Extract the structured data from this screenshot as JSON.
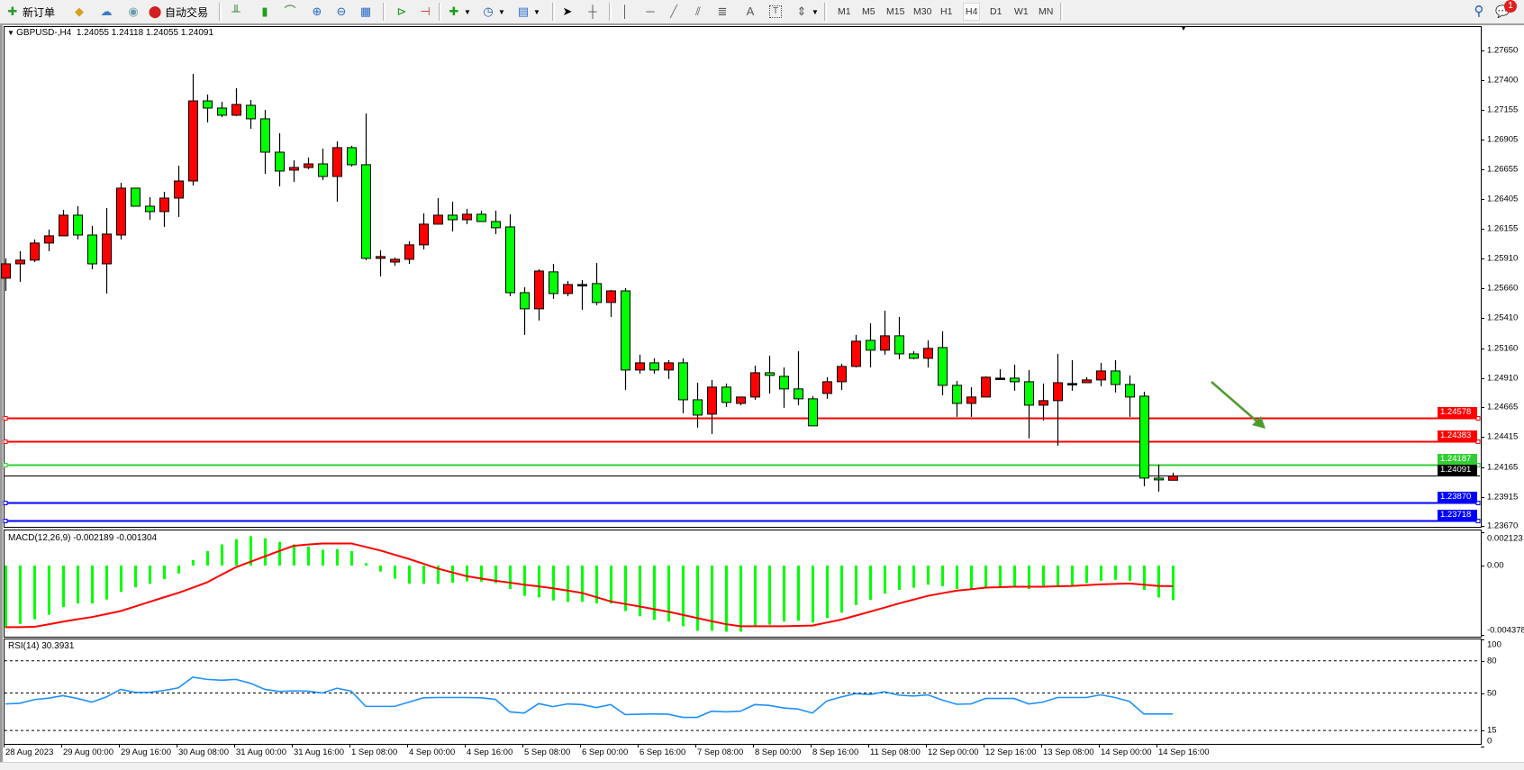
{
  "toolbar": {
    "new_order": {
      "label": "新订单",
      "icon": "new-order-icon"
    },
    "auto_trading": {
      "label": "自动交易",
      "icon": "auto-trading-icon"
    },
    "timeframes": [
      "M1",
      "M5",
      "M15",
      "M30",
      "H1",
      "H4",
      "D1",
      "W1",
      "MN"
    ],
    "active_timeframe": "H4",
    "notification_count": "1"
  },
  "chart": {
    "header": "GBPUSD-,H4  1.24055 1.24118 1.24055 1.24091",
    "symbol": "GBPUSD-",
    "timeframe": "H4",
    "bid": "1.24091",
    "colors": {
      "up": "#ff0000",
      "down": "#00ff00",
      "outline": "#000000",
      "arrow": "#4e9a2e"
    },
    "price_axis": [
      "1.27650",
      "1.27400",
      "1.27155",
      "1.26905",
      "1.26655",
      "1.26405",
      "1.26155",
      "1.25910",
      "1.25660",
      "1.25410",
      "1.25160",
      "1.24910",
      "1.24665",
      "1.24415",
      "1.24165",
      "1.23915",
      "1.23670"
    ],
    "hlines": [
      {
        "price": "1.24578",
        "color": "#ff0000"
      },
      {
        "price": "1.24383",
        "color": "#ff0000"
      },
      {
        "price": "1.24187",
        "color": "#32cd32"
      },
      {
        "price": "1.23870",
        "color": "#0000ff"
      },
      {
        "price": "1.23718",
        "color": "#0000ff"
      }
    ],
    "bid_line": {
      "price": "1.24091",
      "color": "#000000"
    },
    "time_axis": [
      "28 Aug 2023",
      "29 Aug 00:00",
      "29 Aug 16:00",
      "30 Aug 08:00",
      "31 Aug 00:00",
      "31 Aug 16:00",
      "1 Sep 08:00",
      "4 Sep 00:00",
      "4 Sep 16:00",
      "5 Sep 08:00",
      "6 Sep 00:00",
      "6 Sep 16:00",
      "7 Sep 08:00",
      "8 Sep 00:00",
      "8 Sep 16:00",
      "11 Sep 08:00",
      "12 Sep 00:00",
      "12 Sep 16:00",
      "13 Sep 08:00",
      "14 Sep 00:00",
      "14 Sep 16:00"
    ],
    "candles_ohlc": [
      [
        1.25745,
        1.25911,
        1.25639,
        1.25865
      ],
      [
        1.25865,
        1.25971,
        1.25715,
        1.25896
      ],
      [
        1.25896,
        1.26069,
        1.2588,
        1.26039
      ],
      [
        1.26039,
        1.26152,
        1.25971,
        1.26099
      ],
      [
        1.26099,
        1.26317,
        1.26099,
        1.26272
      ],
      [
        1.26272,
        1.26347,
        1.26069,
        1.26106
      ],
      [
        1.26106,
        1.26182,
        1.2582,
        1.25865
      ],
      [
        1.25865,
        1.26332,
        1.25617,
        1.26114
      ],
      [
        1.26106,
        1.26543,
        1.26069,
        1.26498
      ],
      [
        1.26498,
        1.26498,
        1.26347,
        1.26347
      ],
      [
        1.26347,
        1.26423,
        1.26234,
        1.26302
      ],
      [
        1.26302,
        1.26468,
        1.26174,
        1.26415
      ],
      [
        1.26415,
        1.26686,
        1.26257,
        1.26558
      ],
      [
        1.26558,
        1.27454,
        1.2652,
        1.27228
      ],
      [
        1.27228,
        1.27281,
        1.27048,
        1.27168
      ],
      [
        1.27168,
        1.27221,
        1.27093,
        1.27108
      ],
      [
        1.27108,
        1.27334,
        1.271,
        1.27198
      ],
      [
        1.27191,
        1.27236,
        1.26995,
        1.27078
      ],
      [
        1.27078,
        1.27153,
        1.26618,
        1.26799
      ],
      [
        1.26799,
        1.26957,
        1.26513,
        1.26641
      ],
      [
        1.26649,
        1.26731,
        1.26551,
        1.26671
      ],
      [
        1.26671,
        1.26754,
        1.26656,
        1.26701
      ],
      [
        1.26701,
        1.26829,
        1.26566,
        1.26596
      ],
      [
        1.26596,
        1.26889,
        1.26385,
        1.26837
      ],
      [
        1.26837,
        1.26852,
        1.26679,
        1.26694
      ],
      [
        1.26694,
        1.27123,
        1.25896,
        1.25911
      ],
      [
        1.25911,
        1.25978,
        1.2576,
        1.25926
      ],
      [
        1.2588,
        1.25918,
        1.2585,
        1.25903
      ],
      [
        1.25903,
        1.26054,
        1.25865,
        1.26024
      ],
      [
        1.26024,
        1.26287,
        1.25986,
        1.26197
      ],
      [
        1.26197,
        1.26415,
        1.26197,
        1.26272
      ],
      [
        1.26272,
        1.26385,
        1.26136,
        1.26234
      ],
      [
        1.26234,
        1.26325,
        1.26197,
        1.2628
      ],
      [
        1.2628,
        1.2631,
        1.26219,
        1.26219
      ],
      [
        1.26219,
        1.2631,
        1.26114,
        1.26167
      ],
      [
        1.26174,
        1.2628,
        1.25594,
        1.25624
      ],
      [
        1.25624,
        1.2567,
        1.25271,
        1.25489
      ],
      [
        1.25489,
        1.2582,
        1.25391,
        1.25805
      ],
      [
        1.25798,
        1.25865,
        1.25572,
        1.25617
      ],
      [
        1.25617,
        1.25722,
        1.25594,
        1.25692
      ],
      [
        1.25692,
        1.2573,
        1.25481,
        1.25692
      ],
      [
        1.257,
        1.25873,
        1.25519,
        1.25542
      ],
      [
        1.25542,
        1.25647,
        1.25421,
        1.25639
      ],
      [
        1.25639,
        1.25662,
        1.24811,
        1.24977
      ],
      [
        1.24977,
        1.25105,
        1.24947,
        1.25037
      ],
      [
        1.25037,
        1.25075,
        1.24947,
        1.24977
      ],
      [
        1.24977,
        1.2506,
        1.24902,
        1.25037
      ],
      [
        1.25037,
        1.25075,
        1.24615,
        1.24728
      ],
      [
        1.24728,
        1.24871,
        1.24495,
        1.246
      ],
      [
        1.24608,
        1.24894,
        1.24442,
        1.24834
      ],
      [
        1.24834,
        1.24864,
        1.24668,
        1.24706
      ],
      [
        1.24698,
        1.24751,
        1.24683,
        1.24751
      ],
      [
        1.24751,
        1.25014,
        1.24728,
        1.24954
      ],
      [
        1.24954,
        1.25097,
        1.24781,
        1.24932
      ],
      [
        1.24924,
        1.24999,
        1.24661,
        1.24819
      ],
      [
        1.24819,
        1.25135,
        1.24683,
        1.24736
      ],
      [
        1.24736,
        1.24758,
        1.2451,
        1.2451
      ],
      [
        1.24781,
        1.24917,
        1.24736,
        1.24879
      ],
      [
        1.24879,
        1.2503,
        1.24811,
        1.25007
      ],
      [
        1.25007,
        1.25271,
        1.24999,
        1.25218
      ],
      [
        1.25225,
        1.25368,
        1.24999,
        1.25143
      ],
      [
        1.25143,
        1.25474,
        1.25105,
        1.25263
      ],
      [
        1.25263,
        1.25421,
        1.25067,
        1.25112
      ],
      [
        1.25112,
        1.25135,
        1.25067,
        1.25075
      ],
      [
        1.25075,
        1.25225,
        1.24999,
        1.25158
      ],
      [
        1.25165,
        1.25301,
        1.24766,
        1.24849
      ],
      [
        1.24849,
        1.24886,
        1.24585,
        1.24698
      ],
      [
        1.24698,
        1.24834,
        1.24585,
        1.24751
      ],
      [
        1.24751,
        1.24924,
        1.24751,
        1.24917
      ],
      [
        1.24909,
        1.24984,
        1.24902,
        1.24909
      ],
      [
        1.24909,
        1.25022,
        1.24804,
        1.24879
      ],
      [
        1.24879,
        1.24977,
        1.24405,
        1.24683
      ],
      [
        1.24683,
        1.24864,
        1.24555,
        1.24721
      ],
      [
        1.24721,
        1.25112,
        1.24344,
        1.24871
      ],
      [
        1.24864,
        1.2506,
        1.24804,
        1.24864
      ],
      [
        1.24871,
        1.24917,
        1.24871,
        1.24894
      ],
      [
        1.24894,
        1.25037,
        1.24841,
        1.24969
      ],
      [
        1.24969,
        1.2506,
        1.24789,
        1.24856
      ],
      [
        1.24856,
        1.24932,
        1.24585,
        1.24751
      ],
      [
        1.24758,
        1.24796,
        1.24005,
        1.24073
      ],
      [
        1.24073,
        1.24186,
        1.2396,
        1.24058
      ],
      [
        1.24055,
        1.24118,
        1.24055,
        1.24091
      ]
    ]
  },
  "macd": {
    "label": "MACD(12,26,9) -0.002189 -0.001304",
    "axis": [
      "0.002123",
      "0.00",
      "-0.004378"
    ],
    "histogram_color": "#00ff00",
    "signal_color": "#ff0000",
    "histogram": [
      -0.00394,
      -0.00369,
      -0.0034,
      -0.00311,
      -0.00263,
      -0.0024,
      -0.0024,
      -0.00215,
      -0.00167,
      -0.00138,
      -0.00115,
      -0.00086,
      -0.0005,
      0.00035,
      0.00092,
      0.00134,
      0.00167,
      0.00186,
      0.00173,
      0.0015,
      0.00134,
      0.00121,
      0.001,
      0.00104,
      0.00092,
      0.00015,
      -0.00038,
      -0.00083,
      -0.00115,
      -0.00115,
      -0.00115,
      -0.00109,
      -0.001,
      -0.00102,
      -0.00111,
      -0.00148,
      -0.00192,
      -0.00202,
      -0.00221,
      -0.0023,
      -0.0023,
      -0.0024,
      -0.0024,
      -0.00288,
      -0.00321,
      -0.00344,
      -0.00355,
      -0.00384,
      -0.00413,
      -0.00413,
      -0.00419,
      -0.00419,
      -0.00388,
      -0.00374,
      -0.00355,
      -0.00349,
      -0.00361,
      -0.00332,
      -0.00298,
      -0.0025,
      -0.00217,
      -0.00177,
      -0.00154,
      -0.0014,
      -0.00121,
      -0.00131,
      -0.00148,
      -0.00154,
      -0.00144,
      -0.00134,
      -0.00134,
      -0.00148,
      -0.00134,
      -0.00131,
      -0.00125,
      -0.00111,
      -0.00096,
      -0.0009,
      -0.00096,
      -0.00154,
      -0.00202,
      -0.002189
    ],
    "signal": [
      -0.0039,
      -0.0039,
      -0.00388,
      -0.00372,
      -0.00355,
      -0.0034,
      -0.00326,
      -0.00307,
      -0.00288,
      -0.00259,
      -0.0023,
      -0.00201,
      -0.00173,
      -0.0014,
      -0.00106,
      -0.00058,
      -0.0001,
      0.00024,
      0.00058,
      0.00092,
      0.00125,
      0.00133,
      0.0014,
      0.0014,
      0.0014,
      0.00118,
      0.00096,
      0.00069,
      0.00042,
      0.00012,
      -0.00019,
      -0.00043,
      -0.00067,
      -0.00082,
      -0.00096,
      -0.00108,
      -0.00121,
      -0.00132,
      -0.00144,
      -0.00158,
      -0.00173,
      -0.002,
      -0.00227,
      -0.00243,
      -0.00259,
      -0.00276,
      -0.00292,
      -0.00312,
      -0.00332,
      -0.00352,
      -0.00371,
      -0.00384,
      -0.00384,
      -0.00384,
      -0.00384,
      -0.00382,
      -0.0038,
      -0.00361,
      -0.00342,
      -0.00317,
      -0.00292,
      -0.00266,
      -0.0024,
      -0.00216,
      -0.00192,
      -0.00175,
      -0.00159,
      -0.0015,
      -0.0014,
      -0.00137,
      -0.00134,
      -0.00134,
      -0.00134,
      -0.00131,
      -0.00129,
      -0.00124,
      -0.00119,
      -0.00116,
      -0.00113,
      -0.00121,
      -0.00129,
      -0.001304
    ]
  },
  "rsi": {
    "label": "RSI(14) 30.3931",
    "axis": [
      "100",
      "80",
      "50",
      "15",
      "0"
    ],
    "levels": [
      80,
      50,
      15
    ],
    "color": "#1e90ff",
    "values": [
      39.8,
      40.4,
      43.8,
      45.2,
      47.5,
      44.9,
      41.5,
      46.3,
      53.4,
      50.6,
      50.6,
      52.3,
      54.8,
      64.7,
      62.7,
      61.9,
      62.7,
      59.1,
      53.4,
      51.4,
      52.0,
      51.7,
      50.0,
      54.5,
      51.7,
      37.5,
      37.5,
      37.5,
      41.5,
      45.5,
      45.8,
      45.8,
      45.8,
      45.5,
      44.1,
      32.4,
      31.3,
      40.1,
      37.3,
      39.8,
      39.2,
      36.4,
      39.2,
      29.9,
      30.2,
      30.5,
      30.2,
      27.3,
      27.3,
      33.0,
      32.4,
      33.0,
      39.2,
      38.4,
      36.1,
      35.0,
      31.3,
      42.6,
      46.3,
      49.4,
      48.6,
      51.1,
      48.0,
      47.2,
      48.3,
      43.5,
      39.5,
      39.8,
      44.9,
      44.9,
      44.9,
      39.8,
      41.5,
      45.8,
      45.8,
      45.8,
      48.3,
      45.8,
      42.1,
      30.4,
      30.4,
      30.3931
    ]
  }
}
